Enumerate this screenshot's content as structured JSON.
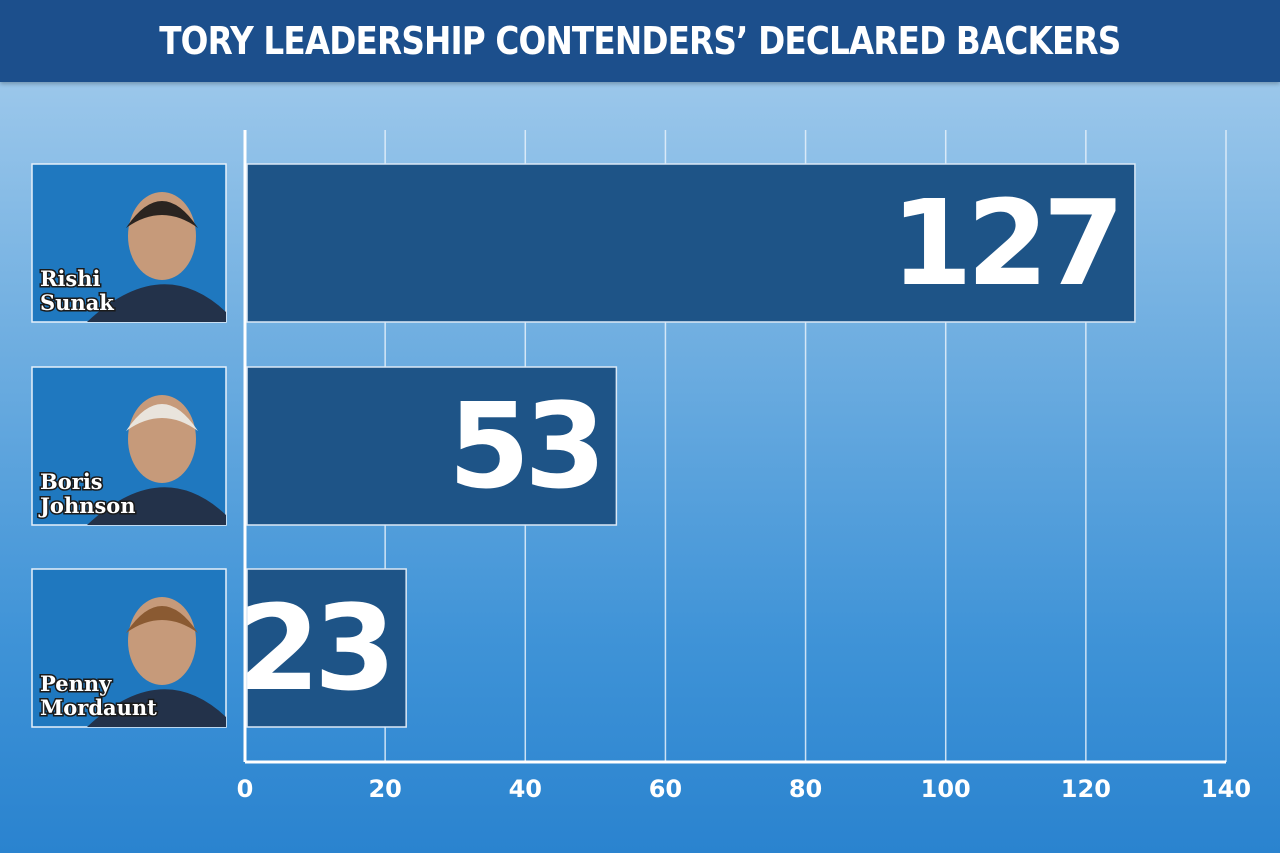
{
  "chart_data": {
    "type": "bar",
    "orientation": "horizontal",
    "title": "TORY LEADERSHIP CONTENDERS’ DECLARED BACKERS",
    "xlabel": "",
    "ylabel": "",
    "categories": [
      "Rishi Sunak",
      "Boris Johnson",
      "Penny Mordaunt"
    ],
    "name_lines": [
      [
        "Rishi",
        "Sunak"
      ],
      [
        "Boris",
        "Johnson"
      ],
      [
        "Penny",
        "Mordaunt"
      ]
    ],
    "values": [
      127,
      53,
      23
    ],
    "value_labels": [
      "127",
      "53",
      "23"
    ],
    "xlim": [
      0,
      140
    ],
    "xticks": [
      0,
      20,
      40,
      60,
      80,
      100,
      120,
      140
    ],
    "grid": true,
    "bar_color": "#1e5487",
    "bar_outline_color": "#dbe8f5",
    "photo_background_color": "#1f78bf"
  }
}
